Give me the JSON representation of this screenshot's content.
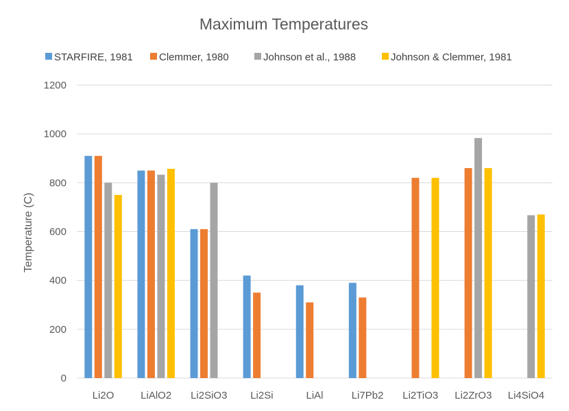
{
  "chart_data": {
    "type": "bar",
    "title": "Maximum Temperatures",
    "xlabel": "",
    "ylabel": "Temperature (C)",
    "ylim": [
      0,
      1200
    ],
    "yticks": [
      0,
      200,
      400,
      600,
      800,
      1000,
      1200
    ],
    "grid": true,
    "legend_position": "top",
    "categories": [
      "Li2O",
      "LiAlO2",
      "Li2SiO3",
      "Li2Si",
      "LiAl",
      "Li7Pb2",
      "Li2TiO3",
      "Li2ZrO3",
      "Li4SiO4"
    ],
    "series": [
      {
        "name": "STARFIRE, 1981",
        "color": "#5B9BD5",
        "values": [
          910,
          850,
          610,
          420,
          380,
          390,
          null,
          null,
          null
        ]
      },
      {
        "name": "Clemmer, 1980",
        "color": "#ED7D31",
        "values": [
          910,
          850,
          610,
          350,
          310,
          330,
          820,
          860,
          null
        ]
      },
      {
        "name": "Johnson et al., 1988",
        "color": "#A5A5A5",
        "values": [
          800,
          833,
          800,
          null,
          null,
          null,
          null,
          983,
          667
        ]
      },
      {
        "name": "Johnson & Clemmer, 1981",
        "color": "#FFC000",
        "values": [
          750,
          857,
          null,
          null,
          null,
          null,
          820,
          860,
          670
        ]
      }
    ]
  }
}
